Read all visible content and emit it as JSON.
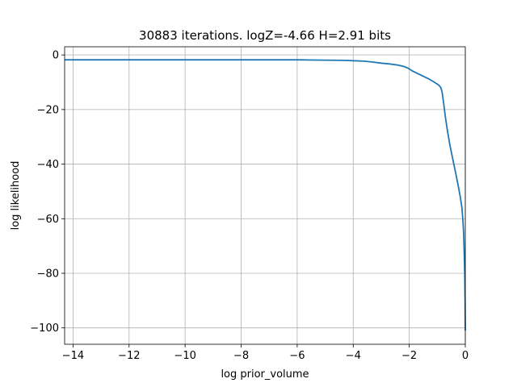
{
  "chart_data": {
    "type": "line",
    "title": "30883 iterations. logZ=-4.66 H=2.91 bits",
    "xlabel": "log prior_volume",
    "ylabel": "log likelihood",
    "xlim": [
      -14.3,
      0.0
    ],
    "ylim": [
      -106,
      3
    ],
    "grid": true,
    "xticks": [
      -14,
      -12,
      -10,
      -8,
      -6,
      -4,
      -2,
      0
    ],
    "xtick_labels": [
      "−14",
      "−12",
      "−10",
      "−8",
      "−6",
      "−4",
      "−2",
      "0"
    ],
    "yticks": [
      0,
      -20,
      -40,
      -60,
      -80,
      -100
    ],
    "ytick_labels": [
      "0",
      "−20",
      "−40",
      "−60",
      "−80",
      "−100"
    ],
    "line_color": "#1f77b4",
    "series": [
      {
        "x": [
          -14.3,
          -12,
          -10,
          -8,
          -6,
          -5,
          -4.3,
          -4,
          -3.6,
          -3.3,
          -3.0,
          -2.7,
          -2.4,
          -2.2,
          -2.05,
          -1.9,
          -1.7,
          -1.5,
          -1.3,
          -1.1,
          -0.95,
          -0.87,
          -0.83,
          -0.78,
          -0.72,
          -0.65,
          -0.55,
          -0.45,
          -0.35,
          -0.25,
          -0.18,
          -0.12,
          -0.09,
          -0.06,
          -0.04,
          -0.02,
          -0.01,
          0.0
        ],
        "y": [
          -1.8,
          -1.8,
          -1.8,
          -1.8,
          -1.8,
          -1.9,
          -2.0,
          -2.1,
          -2.3,
          -2.6,
          -3.0,
          -3.3,
          -3.7,
          -4.2,
          -4.8,
          -5.8,
          -6.8,
          -7.8,
          -8.8,
          -10.0,
          -11.0,
          -12.0,
          -13.5,
          -17.0,
          -22.0,
          -27.0,
          -33.0,
          -38.0,
          -43.0,
          -48.0,
          -52.0,
          -56.0,
          -60.0,
          -65.0,
          -72.0,
          -80.0,
          -90.0,
          -101.0
        ]
      }
    ]
  }
}
